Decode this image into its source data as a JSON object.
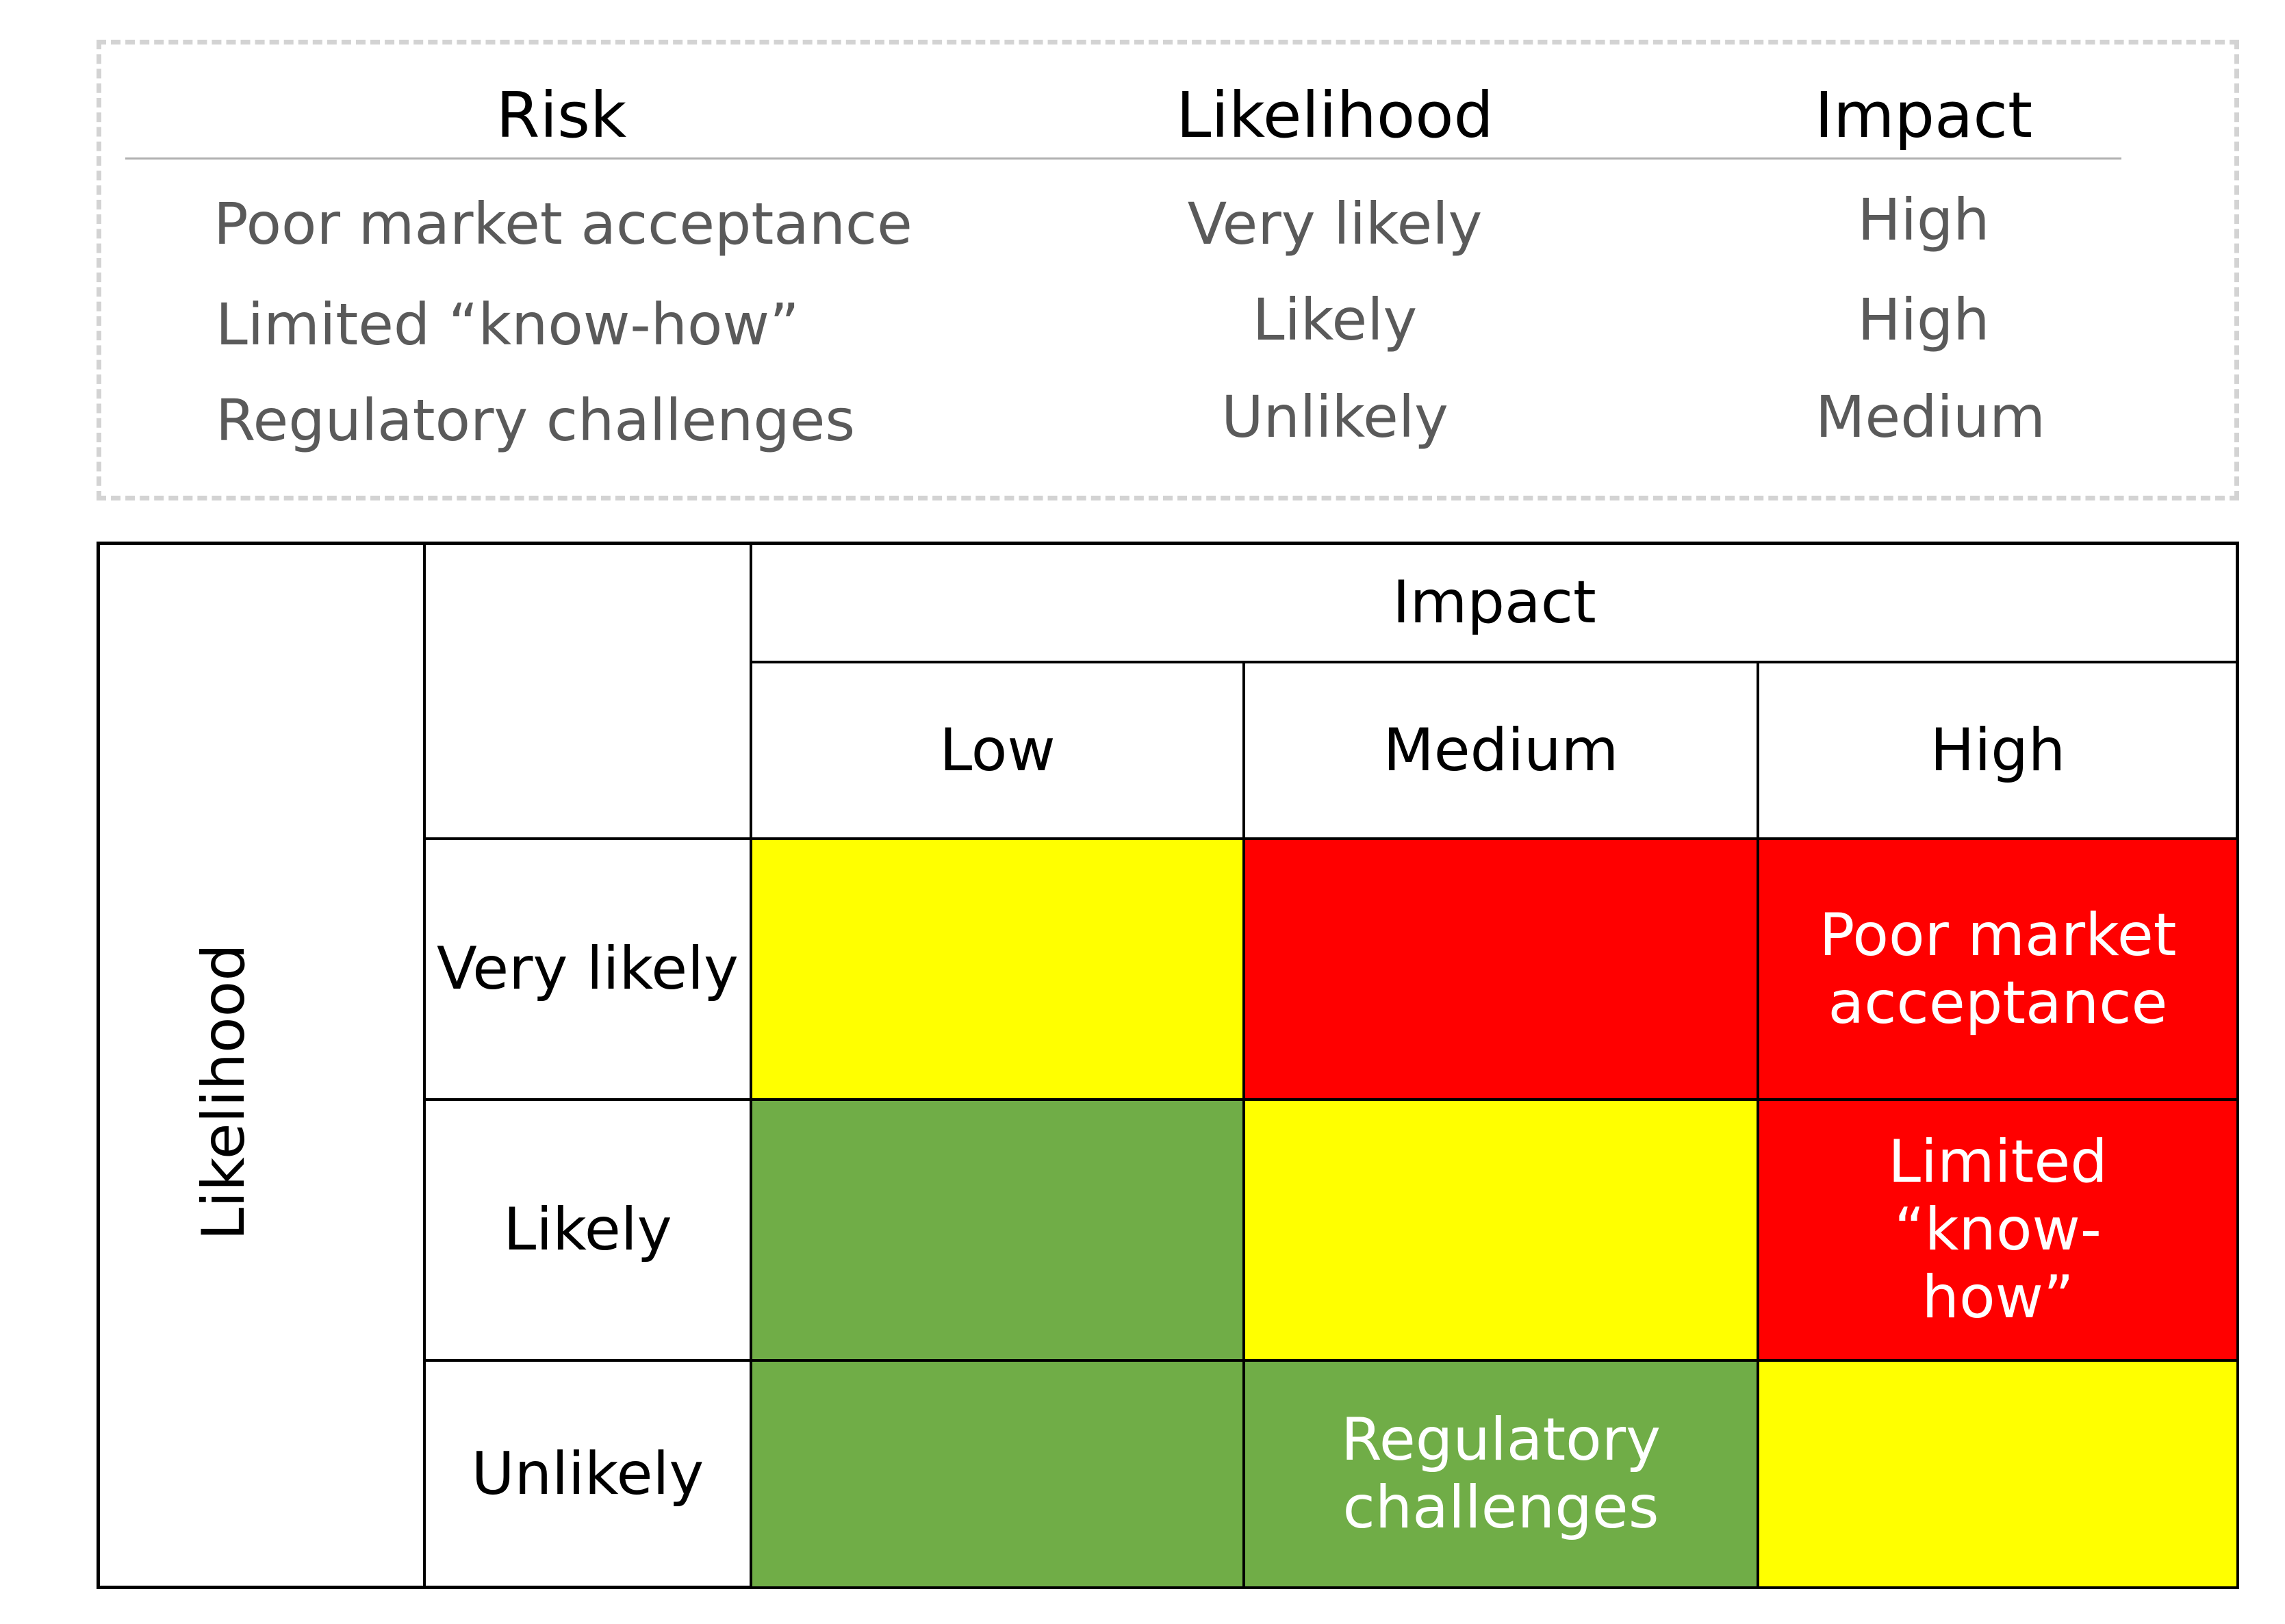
{
  "summary_table": {
    "headers": {
      "risk": "Risk",
      "likelihood": "Likelihood",
      "impact": "Impact"
    },
    "rows": [
      {
        "risk": "Poor market acceptance",
        "likelihood": "Very likely",
        "impact": "High"
      },
      {
        "risk": "Limited “know-how”",
        "likelihood": "Likely",
        "impact": "High"
      },
      {
        "risk": "Regulatory challenges",
        "likelihood": "Unlikely",
        "impact": "Medium"
      }
    ]
  },
  "matrix": {
    "axis_likelihood": "Likelihood",
    "axis_impact": "Impact",
    "impact_levels": [
      "Low",
      "Medium",
      "High"
    ],
    "likelihood_levels": [
      "Very likely",
      "Likely",
      "Unlikely"
    ],
    "colors": {
      "yellow": "#ffff00",
      "red": "#ff0000",
      "green": "#70ad47"
    },
    "cells": [
      [
        {
          "color": "yellow",
          "label": ""
        },
        {
          "color": "red",
          "label": ""
        },
        {
          "color": "red",
          "label": "Poor market acceptance"
        }
      ],
      [
        {
          "color": "green",
          "label": ""
        },
        {
          "color": "yellow",
          "label": ""
        },
        {
          "color": "red",
          "label": "Limited “know-how”"
        }
      ],
      [
        {
          "color": "green",
          "label": ""
        },
        {
          "color": "green",
          "label": "Regulatory challenges"
        },
        {
          "color": "yellow",
          "label": ""
        }
      ]
    ]
  }
}
